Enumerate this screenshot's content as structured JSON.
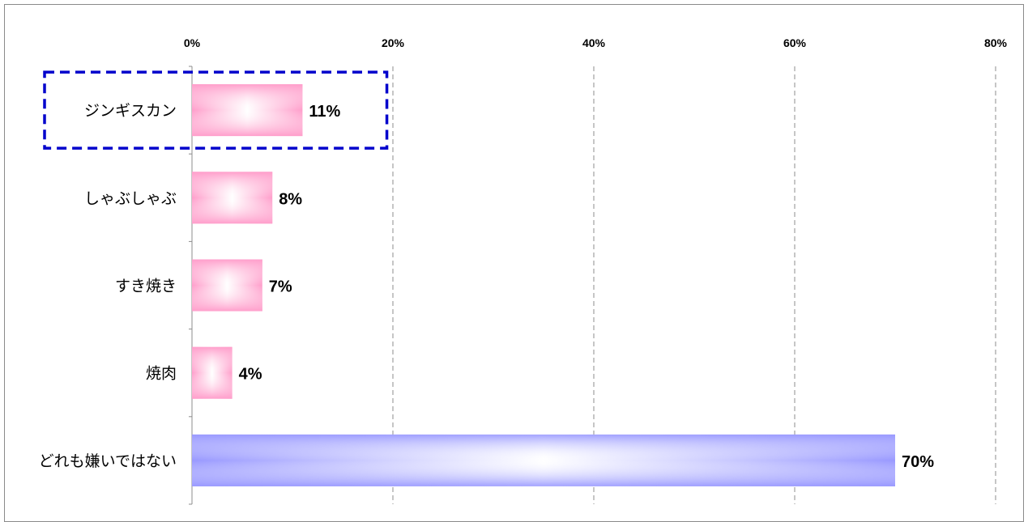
{
  "chart_data": {
    "type": "bar",
    "orientation": "horizontal",
    "categories": [
      "ジンギスカン",
      "しゃぶしゃぶ",
      "すき焼き",
      "焼肉",
      "どれも嫌いではない"
    ],
    "values": [
      11,
      8,
      7,
      4,
      70
    ],
    "data_labels": [
      "11%",
      "8%",
      "7%",
      "4%",
      "70%"
    ],
    "x_ticks": [
      "0%",
      "20%",
      "40%",
      "60%",
      "80%"
    ],
    "xlim": [
      0,
      80
    ],
    "grid": "vertical dashed",
    "colors": {
      "bar_pink": "#ff9ecb",
      "bar_pink_light": "#ffffff",
      "bar_blue": "#9999ff",
      "bar_blue_light": "#ffffff",
      "highlight_box": "#0000cc",
      "grid": "#8c8c8c",
      "axis": "#8c8c8c"
    },
    "highlight_category": "ジンギスカン"
  }
}
